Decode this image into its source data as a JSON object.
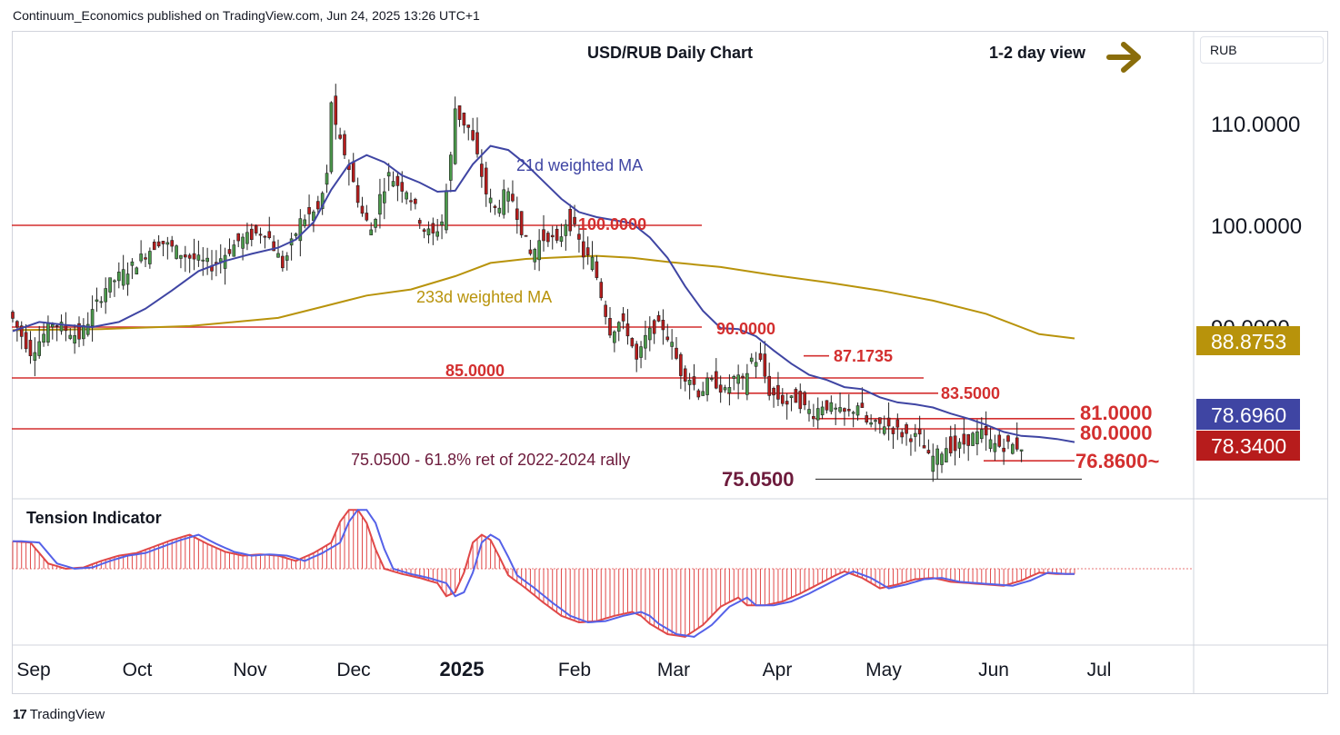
{
  "header": {
    "publisher_line": "Continuum_Economics published on TradingView.com, Jun 24, 2025 13:26 UTC+1"
  },
  "footer": {
    "brand": "TradingView",
    "brand_mark": "17"
  },
  "currency_badge": "RUB",
  "colors": {
    "candle_up": "#4b9a4b",
    "candle_down": "#b71c1c",
    "ma21": "#3f45a3",
    "ma233": "#b8930b",
    "level_line": "#d32f2f",
    "tension_hist": "#e04848",
    "tension_line": "#5561e8",
    "badge_gold": "#b8930b",
    "badge_blue": "#3f45a3",
    "badge_red": "#b71c1c",
    "target_text": "#6d1b3c",
    "arrow": "#8a6d0b"
  },
  "icons": {
    "view_arrow": "right-arrow-icon"
  },
  "chart_data": {
    "type": "candlestick",
    "title": "USD/RUB Daily Chart",
    "view_label": "1-2 day view",
    "price_axis": {
      "ticks": [
        "110.0000",
        "100.0000",
        "90.0000"
      ],
      "range": [
        72.5,
        119.0
      ]
    },
    "time_axis": {
      "labels": [
        "Sep",
        "Oct",
        "Nov",
        "Dec",
        "2025",
        "Feb",
        "Mar",
        "Apr",
        "May",
        "Jun",
        "Jul"
      ]
    },
    "price_badges": [
      {
        "value": "88.8753",
        "series": "233d weighted MA"
      },
      {
        "value": "78.6960",
        "series": "21d weighted MA"
      },
      {
        "value": "78.3400",
        "series": "last price"
      }
    ],
    "levels": [
      {
        "label": "100.0000",
        "value": 100.0
      },
      {
        "label": "90.0000",
        "value": 90.0
      },
      {
        "label": "87.1735",
        "value": 87.1735
      },
      {
        "label": "85.0000",
        "value": 85.0
      },
      {
        "label": "83.5000",
        "value": 83.5
      },
      {
        "label": "81.0000",
        "value": 81.0
      },
      {
        "label": "80.0000",
        "value": 80.0
      },
      {
        "label": "76.8600~",
        "value": 76.86
      },
      {
        "label": "75.0500",
        "value": 75.05
      }
    ],
    "annotations": [
      {
        "text": "21d weighted MA"
      },
      {
        "text": "233d weighted MA"
      },
      {
        "text": "75.0500 - 61.8% ret of 2022-2024 rally"
      }
    ],
    "ma21_path": [
      [
        0,
        89.6
      ],
      [
        6,
        90.5
      ],
      [
        12,
        90.2
      ],
      [
        18,
        90.0
      ],
      [
        24,
        90.5
      ],
      [
        30,
        91.8
      ],
      [
        36,
        93.6
      ],
      [
        42,
        95.5
      ],
      [
        48,
        96.5
      ],
      [
        54,
        97.2
      ],
      [
        60,
        97.8
      ],
      [
        64,
        98.6
      ],
      [
        68,
        100.3
      ],
      [
        72,
        103.5
      ],
      [
        76,
        106.0
      ],
      [
        80,
        106.9
      ],
      [
        84,
        106.2
      ],
      [
        88,
        104.9
      ],
      [
        92,
        104.2
      ],
      [
        96,
        103.3
      ],
      [
        100,
        103.4
      ],
      [
        104,
        106.0
      ],
      [
        108,
        107.8
      ],
      [
        112,
        107.4
      ],
      [
        116,
        106.0
      ],
      [
        120,
        104.3
      ],
      [
        124,
        102.6
      ],
      [
        128,
        101.3
      ],
      [
        132,
        100.8
      ],
      [
        136,
        100.5
      ],
      [
        140,
        100.2
      ],
      [
        144,
        98.8
      ],
      [
        148,
        96.8
      ],
      [
        152,
        94.0
      ],
      [
        156,
        91.6
      ],
      [
        160,
        89.9
      ],
      [
        164,
        89.8
      ],
      [
        168,
        89.1
      ],
      [
        172,
        87.7
      ],
      [
        176,
        86.4
      ],
      [
        180,
        85.3
      ],
      [
        184,
        84.8
      ],
      [
        188,
        84.1
      ],
      [
        192,
        83.9
      ],
      [
        196,
        83.1
      ],
      [
        200,
        82.6
      ],
      [
        204,
        82.4
      ],
      [
        208,
        82.1
      ],
      [
        212,
        81.5
      ],
      [
        216,
        81.0
      ],
      [
        220,
        80.4
      ],
      [
        224,
        79.7
      ],
      [
        228,
        79.3
      ],
      [
        232,
        79.2
      ],
      [
        236,
        79.0
      ],
      [
        240,
        78.7
      ]
    ],
    "ma233_path": [
      [
        0,
        89.7
      ],
      [
        20,
        89.8
      ],
      [
        40,
        90.1
      ],
      [
        60,
        90.9
      ],
      [
        70,
        92.0
      ],
      [
        80,
        93.1
      ],
      [
        90,
        93.7
      ],
      [
        100,
        95.0
      ],
      [
        108,
        96.3
      ],
      [
        116,
        96.7
      ],
      [
        126,
        96.9
      ],
      [
        132,
        97.0
      ],
      [
        140,
        96.8
      ],
      [
        148,
        96.4
      ],
      [
        160,
        95.9
      ],
      [
        172,
        95.1
      ],
      [
        184,
        94.4
      ],
      [
        196,
        93.6
      ],
      [
        208,
        92.6
      ],
      [
        220,
        91.3
      ],
      [
        232,
        89.3
      ],
      [
        240,
        88.88
      ]
    ],
    "tension_indicator": {
      "title": "Tension Indicator",
      "range": [
        -1,
        1
      ],
      "values": [
        [
          0,
          0.42
        ],
        [
          4,
          0.4
        ],
        [
          8,
          0.08
        ],
        [
          12,
          0.0
        ],
        [
          16,
          0.02
        ],
        [
          20,
          0.12
        ],
        [
          24,
          0.2
        ],
        [
          28,
          0.24
        ],
        [
          32,
          0.34
        ],
        [
          36,
          0.44
        ],
        [
          40,
          0.52
        ],
        [
          44,
          0.38
        ],
        [
          48,
          0.26
        ],
        [
          52,
          0.2
        ],
        [
          56,
          0.22
        ],
        [
          60,
          0.2
        ],
        [
          64,
          0.12
        ],
        [
          68,
          0.24
        ],
        [
          72,
          0.4
        ],
        [
          74,
          0.72
        ],
        [
          76,
          0.9
        ],
        [
          78,
          0.9
        ],
        [
          80,
          0.7
        ],
        [
          82,
          0.3
        ],
        [
          84,
          0.0
        ],
        [
          88,
          -0.08
        ],
        [
          92,
          -0.14
        ],
        [
          96,
          -0.22
        ],
        [
          98,
          -0.42
        ],
        [
          100,
          -0.36
        ],
        [
          102,
          -0.06
        ],
        [
          104,
          0.4
        ],
        [
          106,
          0.52
        ],
        [
          108,
          0.44
        ],
        [
          110,
          0.18
        ],
        [
          112,
          -0.1
        ],
        [
          116,
          -0.3
        ],
        [
          120,
          -0.52
        ],
        [
          124,
          -0.72
        ],
        [
          128,
          -0.82
        ],
        [
          132,
          -0.8
        ],
        [
          136,
          -0.72
        ],
        [
          140,
          -0.66
        ],
        [
          142,
          -0.72
        ],
        [
          144,
          -0.84
        ],
        [
          148,
          -1.0
        ],
        [
          152,
          -1.04
        ],
        [
          156,
          -0.86
        ],
        [
          160,
          -0.58
        ],
        [
          164,
          -0.44
        ],
        [
          166,
          -0.56
        ],
        [
          170,
          -0.56
        ],
        [
          174,
          -0.5
        ],
        [
          178,
          -0.38
        ],
        [
          182,
          -0.24
        ],
        [
          186,
          -0.1
        ],
        [
          188,
          -0.04
        ],
        [
          192,
          -0.14
        ],
        [
          196,
          -0.3
        ],
        [
          200,
          -0.24
        ],
        [
          204,
          -0.16
        ],
        [
          208,
          -0.14
        ],
        [
          212,
          -0.2
        ],
        [
          216,
          -0.22
        ],
        [
          220,
          -0.24
        ],
        [
          224,
          -0.26
        ],
        [
          228,
          -0.18
        ],
        [
          232,
          -0.06
        ],
        [
          236,
          -0.08
        ],
        [
          240,
          -0.08
        ]
      ]
    }
  }
}
